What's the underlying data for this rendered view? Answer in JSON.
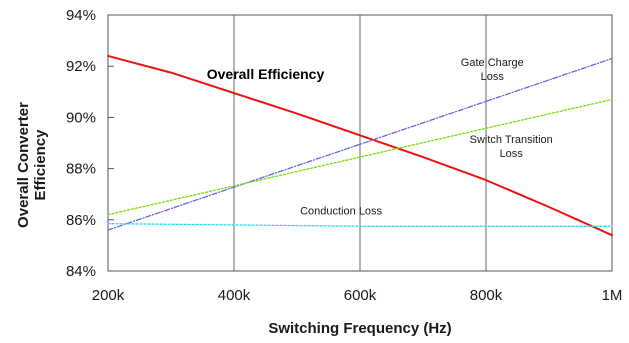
{
  "chart_data": {
    "type": "line",
    "xlabel": "Switching Frequency (Hz)",
    "ylabel_lines": [
      "Overall Converter",
      "Efficiency"
    ],
    "xlim": [
      200000,
      1000000
    ],
    "ylim": [
      84,
      94
    ],
    "x_ticks": [
      {
        "value": 200000,
        "label": "200k"
      },
      {
        "value": 400000,
        "label": "400k"
      },
      {
        "value": 600000,
        "label": "600k"
      },
      {
        "value": 800000,
        "label": "800k"
      },
      {
        "value": 1000000,
        "label": "1M"
      }
    ],
    "y_ticks": [
      {
        "value": 84,
        "label": "84%"
      },
      {
        "value": 86,
        "label": "86%"
      },
      {
        "value": 88,
        "label": "88%"
      },
      {
        "value": 90,
        "label": "90%"
      },
      {
        "value": 92,
        "label": "92%"
      },
      {
        "value": 94,
        "label": "94%"
      }
    ],
    "grid": "vertical",
    "series": [
      {
        "key": "overall-efficiency",
        "color": "#ee1111",
        "style": "solid",
        "x": [
          200000,
          300000,
          400000,
          500000,
          600000,
          700000,
          800000,
          900000,
          1000000
        ],
        "y": [
          92.4,
          91.75,
          90.95,
          90.15,
          89.3,
          88.45,
          87.55,
          86.5,
          85.4
        ]
      },
      {
        "key": "gate-charge-loss",
        "color": "#6666dd",
        "style": "dashdot",
        "x": [
          200000,
          1000000
        ],
        "y": [
          85.6,
          92.3
        ]
      },
      {
        "key": "switch-transition-loss",
        "color": "#77dd00",
        "style": "dotted",
        "x": [
          200000,
          1000000
        ],
        "y": [
          86.2,
          90.7
        ]
      },
      {
        "key": "conduction-loss",
        "color": "#22ddee",
        "style": "dotted",
        "x": [
          200000,
          600000,
          1000000
        ],
        "y": [
          85.85,
          85.75,
          85.75
        ]
      }
    ],
    "annotations": [
      {
        "key": "overall-efficiency",
        "lines": [
          "Overall Efficiency"
        ],
        "bold": true,
        "x": 450000,
        "y": 91.5
      },
      {
        "key": "gate-charge-loss",
        "lines": [
          "Gate Charge",
          "Loss"
        ],
        "bold": false,
        "x": 810000,
        "y": 92.0
      },
      {
        "key": "switch-transition-loss",
        "lines": [
          "Switch Transition",
          "Loss"
        ],
        "bold": false,
        "x": 840000,
        "y": 89.0
      },
      {
        "key": "conduction-loss",
        "lines": [
          "Conduction Loss"
        ],
        "bold": false,
        "x": 570000,
        "y": 86.2
      }
    ]
  }
}
